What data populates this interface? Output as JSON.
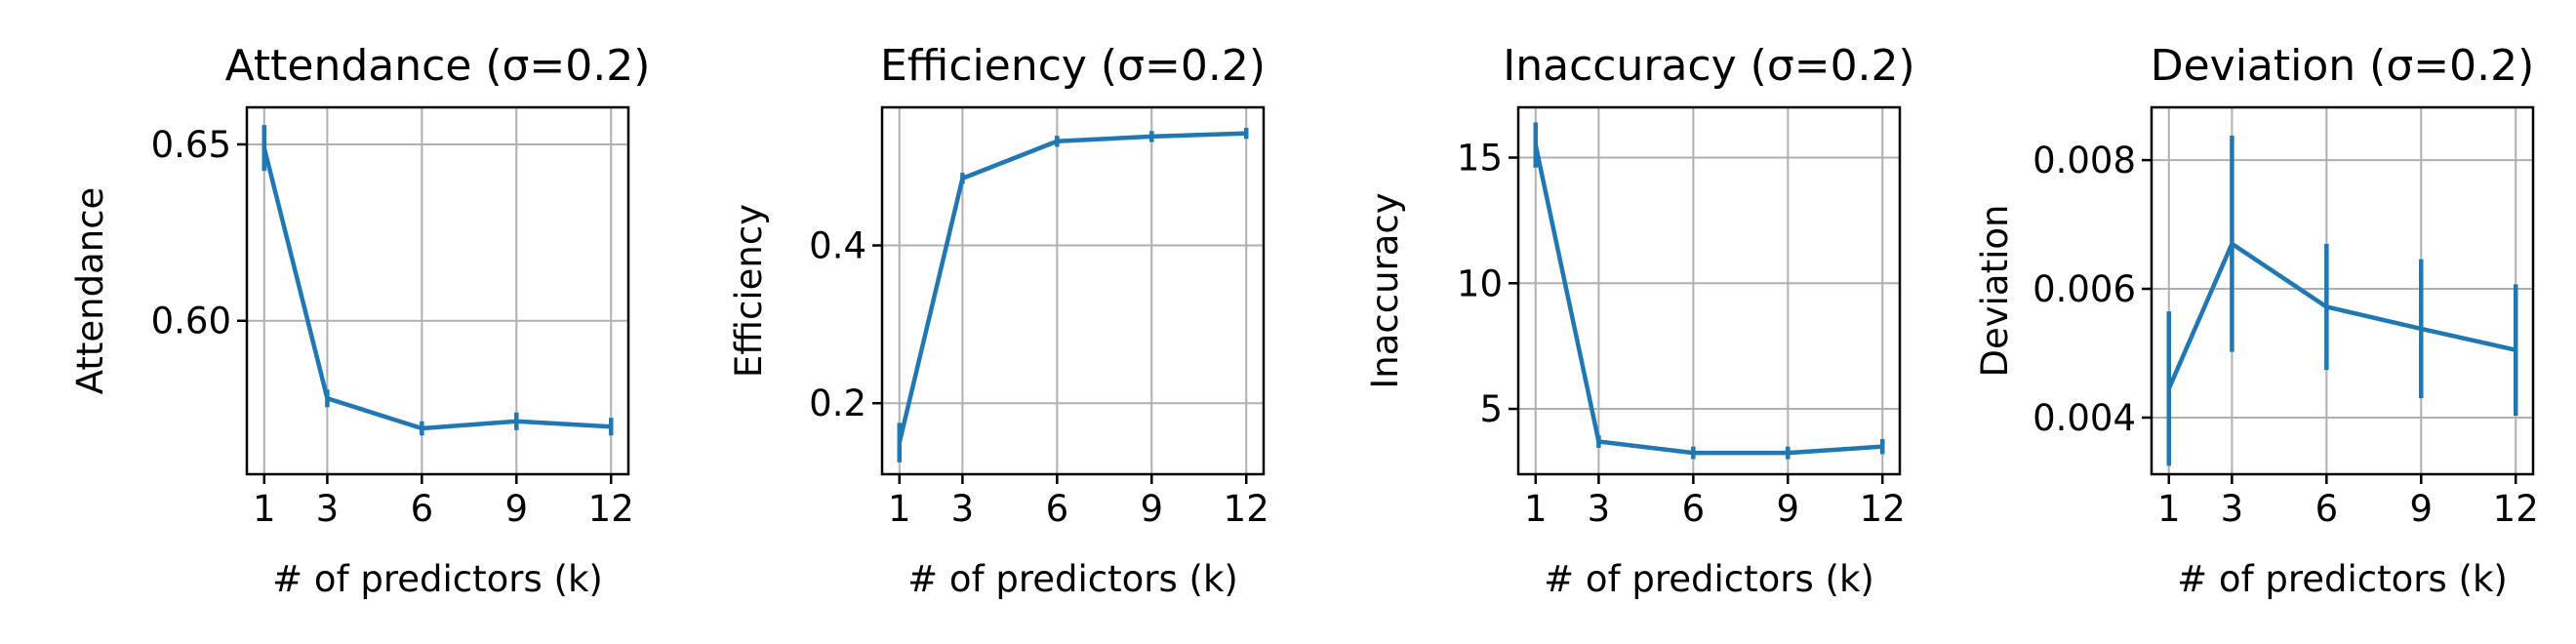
{
  "chart_data": [
    {
      "type": "line",
      "title": "Attendance (σ=0.2)",
      "xlabel": "# of predictors (k)",
      "ylabel": "Attendance",
      "x": [
        1,
        3,
        6,
        9,
        12
      ],
      "x_ticks": [
        "1",
        "3",
        "6",
        "9",
        "12"
      ],
      "xlim": [
        0.45,
        12.55
      ],
      "ylim": [
        0.5565,
        0.6605
      ],
      "y_ticks": [
        0.6,
        0.65
      ],
      "y_tick_labels": [
        "0.60",
        "0.65"
      ],
      "grid": true,
      "series": [
        {
          "values": [
            0.649,
            0.578,
            0.5695,
            0.5715,
            0.57
          ],
          "err": [
            0.0065,
            0.0025,
            0.002,
            0.0025,
            0.0025
          ],
          "color": "#1f77b4"
        }
      ]
    },
    {
      "type": "line",
      "title": "Efficiency (σ=0.2)",
      "xlabel": "# of predictors (k)",
      "ylabel": "Efficiency",
      "x": [
        1,
        3,
        6,
        9,
        12
      ],
      "x_ticks": [
        "1",
        "3",
        "6",
        "9",
        "12"
      ],
      "xlim": [
        0.45,
        12.55
      ],
      "ylim": [
        0.11,
        0.575
      ],
      "y_ticks": [
        0.2,
        0.4
      ],
      "y_tick_labels": [
        "0.2",
        "0.4"
      ],
      "grid": true,
      "series": [
        {
          "values": [
            0.15,
            0.485,
            0.532,
            0.538,
            0.542
          ],
          "err": [
            0.025,
            0.007,
            0.007,
            0.007,
            0.007
          ],
          "color": "#1f77b4"
        }
      ]
    },
    {
      "type": "line",
      "title": "Inaccuracy (σ=0.2)",
      "xlabel": "# of predictors (k)",
      "ylabel": "Inaccuracy",
      "x": [
        1,
        3,
        6,
        9,
        12
      ],
      "x_ticks": [
        "1",
        "3",
        "6",
        "9",
        "12"
      ],
      "xlim": [
        0.45,
        12.55
      ],
      "ylim": [
        2.4,
        17.0
      ],
      "y_ticks": [
        5,
        10,
        15
      ],
      "y_tick_labels": [
        "5",
        "10",
        "15"
      ],
      "grid": true,
      "series": [
        {
          "values": [
            15.5,
            3.7,
            3.25,
            3.25,
            3.5
          ],
          "err": [
            0.9,
            0.25,
            0.25,
            0.25,
            0.3
          ],
          "color": "#1f77b4"
        }
      ]
    },
    {
      "type": "line",
      "title": "Deviation (σ=0.2)",
      "xlabel": "# of predictors (k)",
      "ylabel": "Deviation",
      "x": [
        1,
        3,
        6,
        9,
        12
      ],
      "x_ticks": [
        "1",
        "3",
        "6",
        "9",
        "12"
      ],
      "xlim": [
        0.45,
        12.55
      ],
      "ylim": [
        0.00312,
        0.00882
      ],
      "y_ticks": [
        0.004,
        0.006,
        0.008
      ],
      "y_tick_labels": [
        "0.004",
        "0.006",
        "0.008"
      ],
      "grid": true,
      "series": [
        {
          "values": [
            0.00445,
            0.0067,
            0.00572,
            0.00538,
            0.00505
          ],
          "err": [
            0.0012,
            0.00168,
            0.00098,
            0.00108,
            0.00102
          ],
          "color": "#1f77b4"
        }
      ]
    }
  ]
}
